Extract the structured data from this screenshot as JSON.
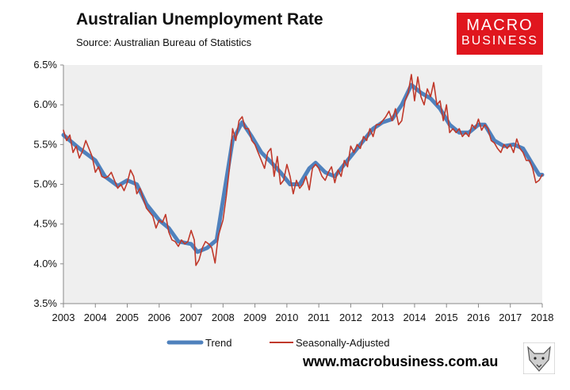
{
  "header": {
    "title": "Australian Unemployment Rate",
    "subtitle": "Source: Australian Bureau of Statistics"
  },
  "logo": {
    "line1": "MACRO",
    "line2": "BUSINESS"
  },
  "footer": {
    "url": "www.macrobusiness.com.au"
  },
  "colors": {
    "trend": "#4f81bd",
    "sa": "#c0392b",
    "plot_bg": "#efefef",
    "logo_bg": "#e0161e"
  },
  "chart_data": {
    "type": "line",
    "title": "Australian Unemployment Rate",
    "subtitle": "Source: Australian Bureau of Statistics",
    "x_ticks": [
      "2003",
      "2004",
      "2005",
      "2006",
      "2007",
      "2008",
      "2009",
      "2010",
      "2011",
      "2012",
      "2013",
      "2014",
      "2015",
      "2016",
      "2017",
      "2018"
    ],
    "xlim": [
      2003,
      2018
    ],
    "ylim": [
      3.5,
      6.5
    ],
    "y_ticks": [
      "3.5%",
      "4.0%",
      "4.5%",
      "5.0%",
      "5.5%",
      "6.0%",
      "6.5%"
    ],
    "grid": false,
    "legend_position": "bottom",
    "series": [
      {
        "name": "Trend",
        "points": [
          [
            2003.0,
            5.62
          ],
          [
            2003.5,
            5.45
          ],
          [
            2004.0,
            5.3
          ],
          [
            2004.3,
            5.1
          ],
          [
            2004.7,
            4.98
          ],
          [
            2005.0,
            5.05
          ],
          [
            2005.3,
            5.0
          ],
          [
            2005.6,
            4.75
          ],
          [
            2006.0,
            4.55
          ],
          [
            2006.3,
            4.45
          ],
          [
            2006.6,
            4.28
          ],
          [
            2007.0,
            4.25
          ],
          [
            2007.2,
            4.15
          ],
          [
            2007.5,
            4.2
          ],
          [
            2007.8,
            4.3
          ],
          [
            2008.0,
            4.8
          ],
          [
            2008.3,
            5.55
          ],
          [
            2008.6,
            5.78
          ],
          [
            2008.9,
            5.6
          ],
          [
            2009.2,
            5.4
          ],
          [
            2009.5,
            5.28
          ],
          [
            2009.8,
            5.15
          ],
          [
            2010.1,
            5.0
          ],
          [
            2010.4,
            5.0
          ],
          [
            2010.7,
            5.2
          ],
          [
            2010.9,
            5.27
          ],
          [
            2011.2,
            5.15
          ],
          [
            2011.5,
            5.1
          ],
          [
            2011.8,
            5.25
          ],
          [
            2012.1,
            5.4
          ],
          [
            2012.4,
            5.55
          ],
          [
            2012.7,
            5.7
          ],
          [
            2013.0,
            5.78
          ],
          [
            2013.3,
            5.82
          ],
          [
            2013.6,
            6.0
          ],
          [
            2013.9,
            6.25
          ],
          [
            2014.2,
            6.15
          ],
          [
            2014.5,
            6.08
          ],
          [
            2014.8,
            5.95
          ],
          [
            2015.1,
            5.75
          ],
          [
            2015.4,
            5.65
          ],
          [
            2015.7,
            5.65
          ],
          [
            2016.0,
            5.75
          ],
          [
            2016.2,
            5.75
          ],
          [
            2016.5,
            5.55
          ],
          [
            2016.8,
            5.48
          ],
          [
            2017.1,
            5.5
          ],
          [
            2017.4,
            5.45
          ],
          [
            2017.7,
            5.25
          ],
          [
            2017.9,
            5.12
          ],
          [
            2018.0,
            5.12
          ]
        ]
      },
      {
        "name": "Seasonally-Adjusted",
        "points": [
          [
            2003.0,
            5.68
          ],
          [
            2003.1,
            5.55
          ],
          [
            2003.2,
            5.62
          ],
          [
            2003.3,
            5.4
          ],
          [
            2003.4,
            5.48
          ],
          [
            2003.5,
            5.33
          ],
          [
            2003.6,
            5.42
          ],
          [
            2003.7,
            5.55
          ],
          [
            2003.8,
            5.45
          ],
          [
            2003.9,
            5.35
          ],
          [
            2004.0,
            5.15
          ],
          [
            2004.1,
            5.22
          ],
          [
            2004.2,
            5.1
          ],
          [
            2004.3,
            5.08
          ],
          [
            2004.4,
            5.1
          ],
          [
            2004.5,
            5.15
          ],
          [
            2004.6,
            5.05
          ],
          [
            2004.7,
            4.95
          ],
          [
            2004.8,
            5.0
          ],
          [
            2004.9,
            4.92
          ],
          [
            2005.0,
            5.02
          ],
          [
            2005.1,
            5.18
          ],
          [
            2005.2,
            5.1
          ],
          [
            2005.3,
            4.88
          ],
          [
            2005.4,
            4.95
          ],
          [
            2005.5,
            4.82
          ],
          [
            2005.6,
            4.7
          ],
          [
            2005.7,
            4.65
          ],
          [
            2005.8,
            4.6
          ],
          [
            2005.9,
            4.45
          ],
          [
            2006.0,
            4.55
          ],
          [
            2006.1,
            4.52
          ],
          [
            2006.2,
            4.62
          ],
          [
            2006.3,
            4.4
          ],
          [
            2006.4,
            4.3
          ],
          [
            2006.5,
            4.28
          ],
          [
            2006.6,
            4.22
          ],
          [
            2006.7,
            4.3
          ],
          [
            2006.8,
            4.25
          ],
          [
            2006.9,
            4.28
          ],
          [
            2007.0,
            4.42
          ],
          [
            2007.1,
            4.3
          ],
          [
            2007.15,
            3.98
          ],
          [
            2007.25,
            4.05
          ],
          [
            2007.35,
            4.2
          ],
          [
            2007.45,
            4.28
          ],
          [
            2007.55,
            4.25
          ],
          [
            2007.65,
            4.2
          ],
          [
            2007.75,
            4.01
          ],
          [
            2007.85,
            4.35
          ],
          [
            2008.0,
            4.55
          ],
          [
            2008.1,
            4.85
          ],
          [
            2008.2,
            5.2
          ],
          [
            2008.3,
            5.7
          ],
          [
            2008.4,
            5.55
          ],
          [
            2008.5,
            5.8
          ],
          [
            2008.6,
            5.85
          ],
          [
            2008.7,
            5.7
          ],
          [
            2008.8,
            5.7
          ],
          [
            2008.9,
            5.55
          ],
          [
            2009.0,
            5.5
          ],
          [
            2009.1,
            5.4
          ],
          [
            2009.2,
            5.3
          ],
          [
            2009.3,
            5.2
          ],
          [
            2009.4,
            5.4
          ],
          [
            2009.5,
            5.45
          ],
          [
            2009.6,
            5.1
          ],
          [
            2009.7,
            5.35
          ],
          [
            2009.8,
            5.0
          ],
          [
            2009.9,
            5.05
          ],
          [
            2010.0,
            5.25
          ],
          [
            2010.1,
            5.1
          ],
          [
            2010.2,
            4.88
          ],
          [
            2010.3,
            5.05
          ],
          [
            2010.4,
            4.95
          ],
          [
            2010.5,
            5.0
          ],
          [
            2010.6,
            5.1
          ],
          [
            2010.7,
            4.93
          ],
          [
            2010.8,
            5.2
          ],
          [
            2010.9,
            5.25
          ],
          [
            2011.0,
            5.2
          ],
          [
            2011.1,
            5.1
          ],
          [
            2011.2,
            5.05
          ],
          [
            2011.3,
            5.15
          ],
          [
            2011.4,
            5.22
          ],
          [
            2011.5,
            5.02
          ],
          [
            2011.6,
            5.18
          ],
          [
            2011.7,
            5.1
          ],
          [
            2011.8,
            5.3
          ],
          [
            2011.9,
            5.22
          ],
          [
            2012.0,
            5.48
          ],
          [
            2012.1,
            5.4
          ],
          [
            2012.2,
            5.5
          ],
          [
            2012.3,
            5.45
          ],
          [
            2012.4,
            5.6
          ],
          [
            2012.5,
            5.55
          ],
          [
            2012.6,
            5.7
          ],
          [
            2012.7,
            5.6
          ],
          [
            2012.8,
            5.75
          ],
          [
            2012.9,
            5.75
          ],
          [
            2013.0,
            5.8
          ],
          [
            2013.1,
            5.85
          ],
          [
            2013.2,
            5.92
          ],
          [
            2013.3,
            5.8
          ],
          [
            2013.4,
            5.95
          ],
          [
            2013.5,
            5.75
          ],
          [
            2013.6,
            5.8
          ],
          [
            2013.7,
            6.05
          ],
          [
            2013.8,
            6.15
          ],
          [
            2013.9,
            6.38
          ],
          [
            2014.0,
            6.05
          ],
          [
            2014.1,
            6.35
          ],
          [
            2014.2,
            6.1
          ],
          [
            2014.3,
            6.0
          ],
          [
            2014.4,
            6.2
          ],
          [
            2014.5,
            6.1
          ],
          [
            2014.6,
            6.28
          ],
          [
            2014.7,
            6.0
          ],
          [
            2014.8,
            6.05
          ],
          [
            2014.9,
            5.8
          ],
          [
            2015.0,
            6.0
          ],
          [
            2015.1,
            5.65
          ],
          [
            2015.2,
            5.7
          ],
          [
            2015.3,
            5.65
          ],
          [
            2015.4,
            5.7
          ],
          [
            2015.5,
            5.6
          ],
          [
            2015.6,
            5.65
          ],
          [
            2015.7,
            5.6
          ],
          [
            2015.8,
            5.75
          ],
          [
            2015.9,
            5.7
          ],
          [
            2016.0,
            5.82
          ],
          [
            2016.1,
            5.68
          ],
          [
            2016.2,
            5.75
          ],
          [
            2016.3,
            5.7
          ],
          [
            2016.4,
            5.55
          ],
          [
            2016.5,
            5.52
          ],
          [
            2016.6,
            5.45
          ],
          [
            2016.7,
            5.4
          ],
          [
            2016.8,
            5.5
          ],
          [
            2016.9,
            5.45
          ],
          [
            2017.0,
            5.5
          ],
          [
            2017.1,
            5.4
          ],
          [
            2017.2,
            5.57
          ],
          [
            2017.3,
            5.45
          ],
          [
            2017.4,
            5.4
          ],
          [
            2017.5,
            5.3
          ],
          [
            2017.6,
            5.3
          ],
          [
            2017.7,
            5.2
          ],
          [
            2017.8,
            5.02
          ],
          [
            2017.9,
            5.05
          ],
          [
            2018.0,
            5.12
          ]
        ]
      }
    ]
  }
}
